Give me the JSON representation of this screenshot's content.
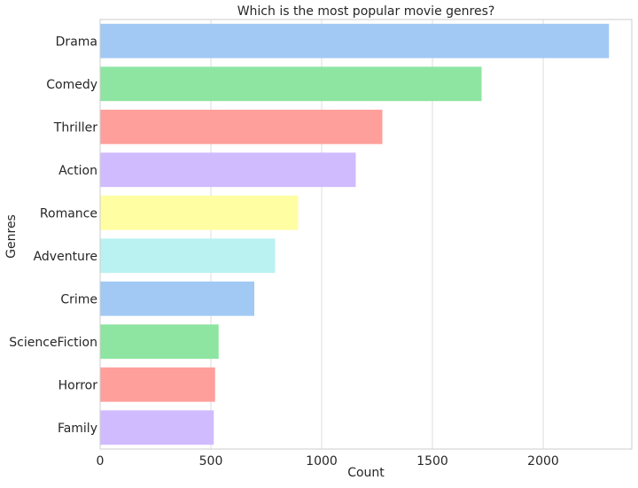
{
  "chart_data": {
    "type": "bar",
    "orientation": "horizontal",
    "title": "Which is the most popular movie genres?",
    "xlabel": "Count",
    "ylabel": "Genres",
    "categories": [
      "Drama",
      "Comedy",
      "Thriller",
      "Action",
      "Romance",
      "Adventure",
      "Crime",
      "ScienceFiction",
      "Horror",
      "Family"
    ],
    "values": [
      2297,
      1722,
      1274,
      1154,
      894,
      790,
      696,
      535,
      519,
      513
    ],
    "xlim": [
      0,
      2400
    ],
    "xticks": [
      0,
      500,
      1000,
      1500,
      2000
    ],
    "grid": true,
    "colors": [
      "#a1c9f4",
      "#8de5a1",
      "#ff9f9b",
      "#d0bbff",
      "#fffea3",
      "#b9f2f0",
      "#a1c9f4",
      "#8de5a1",
      "#ff9f9b",
      "#d0bbff"
    ],
    "plot_background": "#ffffff",
    "grid_color": "#dddddd",
    "spine_color": "#cccccc"
  }
}
